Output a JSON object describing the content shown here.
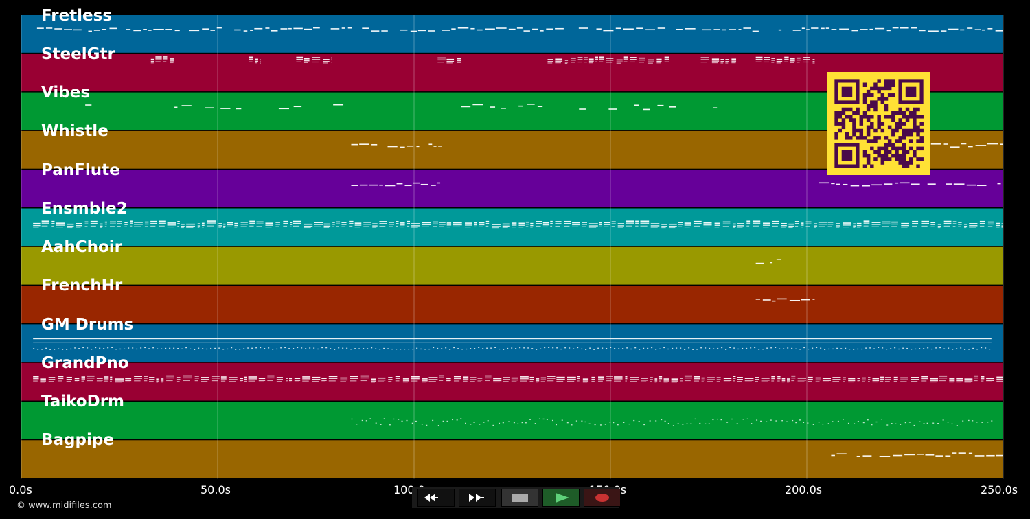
{
  "tracks": [
    {
      "name": "Fretless",
      "color": "#006699"
    },
    {
      "name": "SteelGtr",
      "color": "#990033"
    },
    {
      "name": "Vibes",
      "color": "#009933"
    },
    {
      "name": "Whistle",
      "color": "#996600"
    },
    {
      "name": "PanFlute",
      "color": "#660099"
    },
    {
      "name": "Ensmble2",
      "color": "#009999"
    },
    {
      "name": "AahChoir",
      "color": "#999900"
    },
    {
      "name": "FrenchHr",
      "color": "#992600"
    },
    {
      "name": "GM Drums",
      "color": "#006699"
    },
    {
      "name": "GrandPno",
      "color": "#990033"
    },
    {
      "name": "TaikoDrm",
      "color": "#009933"
    },
    {
      "name": "Bagpipe",
      "color": "#996600"
    }
  ],
  "timeline": {
    "duration_s": 250,
    "ticks": [
      {
        "value": 0,
        "label": "0.0s"
      },
      {
        "value": 50,
        "label": "50.0s"
      },
      {
        "value": 100,
        "label": "100.0s"
      },
      {
        "value": 150,
        "label": "150.0s"
      },
      {
        "value": 200,
        "label": "200.0s"
      },
      {
        "value": 250,
        "label": "250.0s"
      }
    ]
  },
  "copyright": "© www.midifiles.com",
  "transport": {
    "rewind": "rewind-icon",
    "fast_forward": "fast-forward-icon",
    "stop": "stop-icon",
    "play": "play-icon",
    "record": "record-icon"
  },
  "qr_code": "qr-code-icon"
}
